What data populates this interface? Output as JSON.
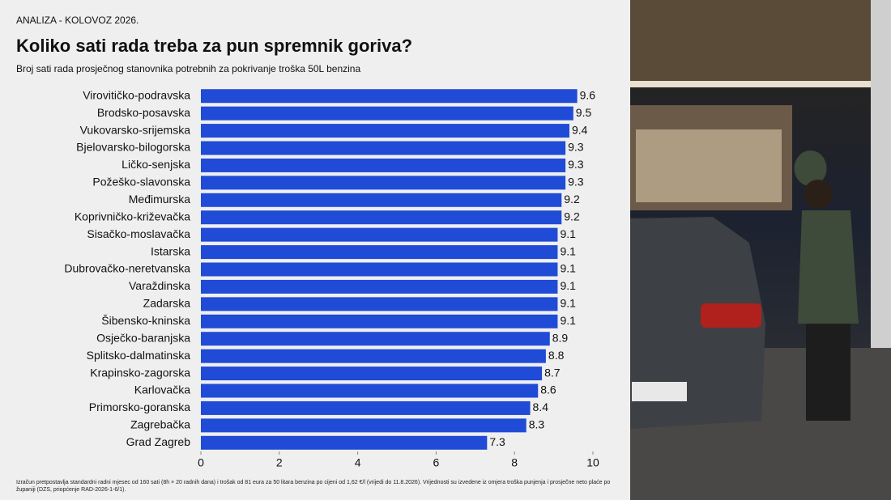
{
  "chart_data": {
    "type": "barh",
    "kicker": "ANALIZA - KOLOVOZ 2026.",
    "title": "Koliko sati rada treba za pun spremnik goriva?",
    "subtitle": "Broj sati rada prosječnog stanovnika potrebnih za pokrivanje troška 50L benzina",
    "footnote": "Izračun pretpostavlja standardni radni mjesec od 160 sati (8h × 20 radnih dana) i trošak od 81 eura za 50 litara benzina po cijeni od 1,62 €/l (vrijedi do 11.8.2026). Vrijednosti su izvedene iz omjera troška punjenja i prosječne neto plaće po županiji (DZS, priopćenje RAD-2026-1-6/1).",
    "categories": [
      "Virovitičko-podravska",
      "Brodsko-posavska",
      "Vukovarsko-srijemska",
      "Bjelovarsko-bilogorska",
      "Ličko-senjska",
      "Požeško-slavonska",
      "Međimurska",
      "Koprivničko-križevačka",
      "Sisačko-moslavačka",
      "Istarska",
      "Dubrovačko-neretvanska",
      "Varaždinska",
      "Zadarska",
      "Šibensko-kninska",
      "Osječko-baranjska",
      "Splitsko-dalmatinska",
      "Krapinsko-zagorska",
      "Karlovačka",
      "Primorsko-goranska",
      "Zagrebačka",
      "Grad Zagreb"
    ],
    "values": [
      9.6,
      9.5,
      9.4,
      9.3,
      9.3,
      9.3,
      9.2,
      9.2,
      9.1,
      9.1,
      9.1,
      9.1,
      9.1,
      9.1,
      8.9,
      8.8,
      8.7,
      8.6,
      8.4,
      8.3,
      7.3
    ],
    "color": "#1f4bd6",
    "xlim": [
      0,
      10
    ],
    "xticks": [
      0,
      2,
      4,
      6,
      8,
      10
    ]
  }
}
